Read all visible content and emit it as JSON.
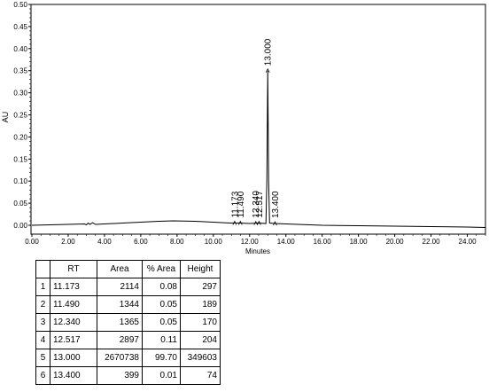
{
  "chart_data": {
    "type": "line",
    "xlabel": "Minutes",
    "ylabel": "AU",
    "xlim": [
      0,
      25
    ],
    "ylim": [
      -0.02,
      0.5
    ],
    "x_ticks": [
      "0.00",
      "2.00",
      "4.00",
      "6.00",
      "8.00",
      "10.00",
      "12.00",
      "14.00",
      "16.00",
      "18.00",
      "20.00",
      "22.00",
      "24.00"
    ],
    "y_ticks": [
      "0.00",
      "0.05",
      "0.10",
      "0.15",
      "0.20",
      "0.25",
      "0.30",
      "0.35",
      "0.40",
      "0.45",
      "0.50"
    ],
    "baseline": [
      {
        "x": 0.0,
        "y": 0.0
      },
      {
        "x": 1.0,
        "y": 0.001
      },
      {
        "x": 2.0,
        "y": 0.002
      },
      {
        "x": 2.9,
        "y": 0.003
      },
      {
        "x": 3.0,
        "y": 0.001
      },
      {
        "x": 3.1,
        "y": 0.005
      },
      {
        "x": 3.2,
        "y": 0.002
      },
      {
        "x": 3.35,
        "y": 0.006
      },
      {
        "x": 3.5,
        "y": 0.002
      },
      {
        "x": 4.0,
        "y": 0.003
      },
      {
        "x": 5.0,
        "y": 0.005
      },
      {
        "x": 6.0,
        "y": 0.007
      },
      {
        "x": 7.0,
        "y": 0.009
      },
      {
        "x": 7.8,
        "y": 0.01
      },
      {
        "x": 9.0,
        "y": 0.009
      },
      {
        "x": 10.0,
        "y": 0.007
      },
      {
        "x": 11.0,
        "y": 0.005
      },
      {
        "x": 11.5,
        "y": 0.005
      },
      {
        "x": 12.0,
        "y": 0.004
      },
      {
        "x": 12.5,
        "y": 0.005
      },
      {
        "x": 12.9,
        "y": 0.004
      },
      {
        "x": 12.95,
        "y": 0.1
      },
      {
        "x": 13.0,
        "y": 0.35
      },
      {
        "x": 13.05,
        "y": 0.1
      },
      {
        "x": 13.1,
        "y": 0.005
      },
      {
        "x": 13.4,
        "y": 0.004
      },
      {
        "x": 14.0,
        "y": 0.003
      },
      {
        "x": 16.0,
        "y": 0.0
      },
      {
        "x": 18.0,
        "y": -0.001
      },
      {
        "x": 20.0,
        "y": -0.002
      },
      {
        "x": 22.0,
        "y": -0.003
      },
      {
        "x": 24.0,
        "y": -0.004
      },
      {
        "x": 25.0,
        "y": -0.005
      }
    ],
    "peak_labels": [
      {
        "rt": 11.173,
        "text": "11.173"
      },
      {
        "rt": 11.49,
        "text": "11.490"
      },
      {
        "rt": 12.34,
        "text": "12.340"
      },
      {
        "rt": 12.517,
        "text": "12.517"
      },
      {
        "rt": 13.0,
        "text": "13.000"
      },
      {
        "rt": 13.4,
        "text": "13.400"
      }
    ]
  },
  "table": {
    "headers": [
      "",
      "RT",
      "Area",
      "% Area",
      "Height"
    ],
    "rows": [
      [
        "1",
        "11.173",
        "2114",
        "0.08",
        "297"
      ],
      [
        "2",
        "11.490",
        "1344",
        "0.05",
        "189"
      ],
      [
        "3",
        "12.340",
        "1365",
        "0.05",
        "170"
      ],
      [
        "4",
        "12.517",
        "2897",
        "0.11",
        "204"
      ],
      [
        "5",
        "13.000",
        "2670738",
        "99.70",
        "349603"
      ],
      [
        "6",
        "13.400",
        "399",
        "0.01",
        "74"
      ]
    ]
  }
}
